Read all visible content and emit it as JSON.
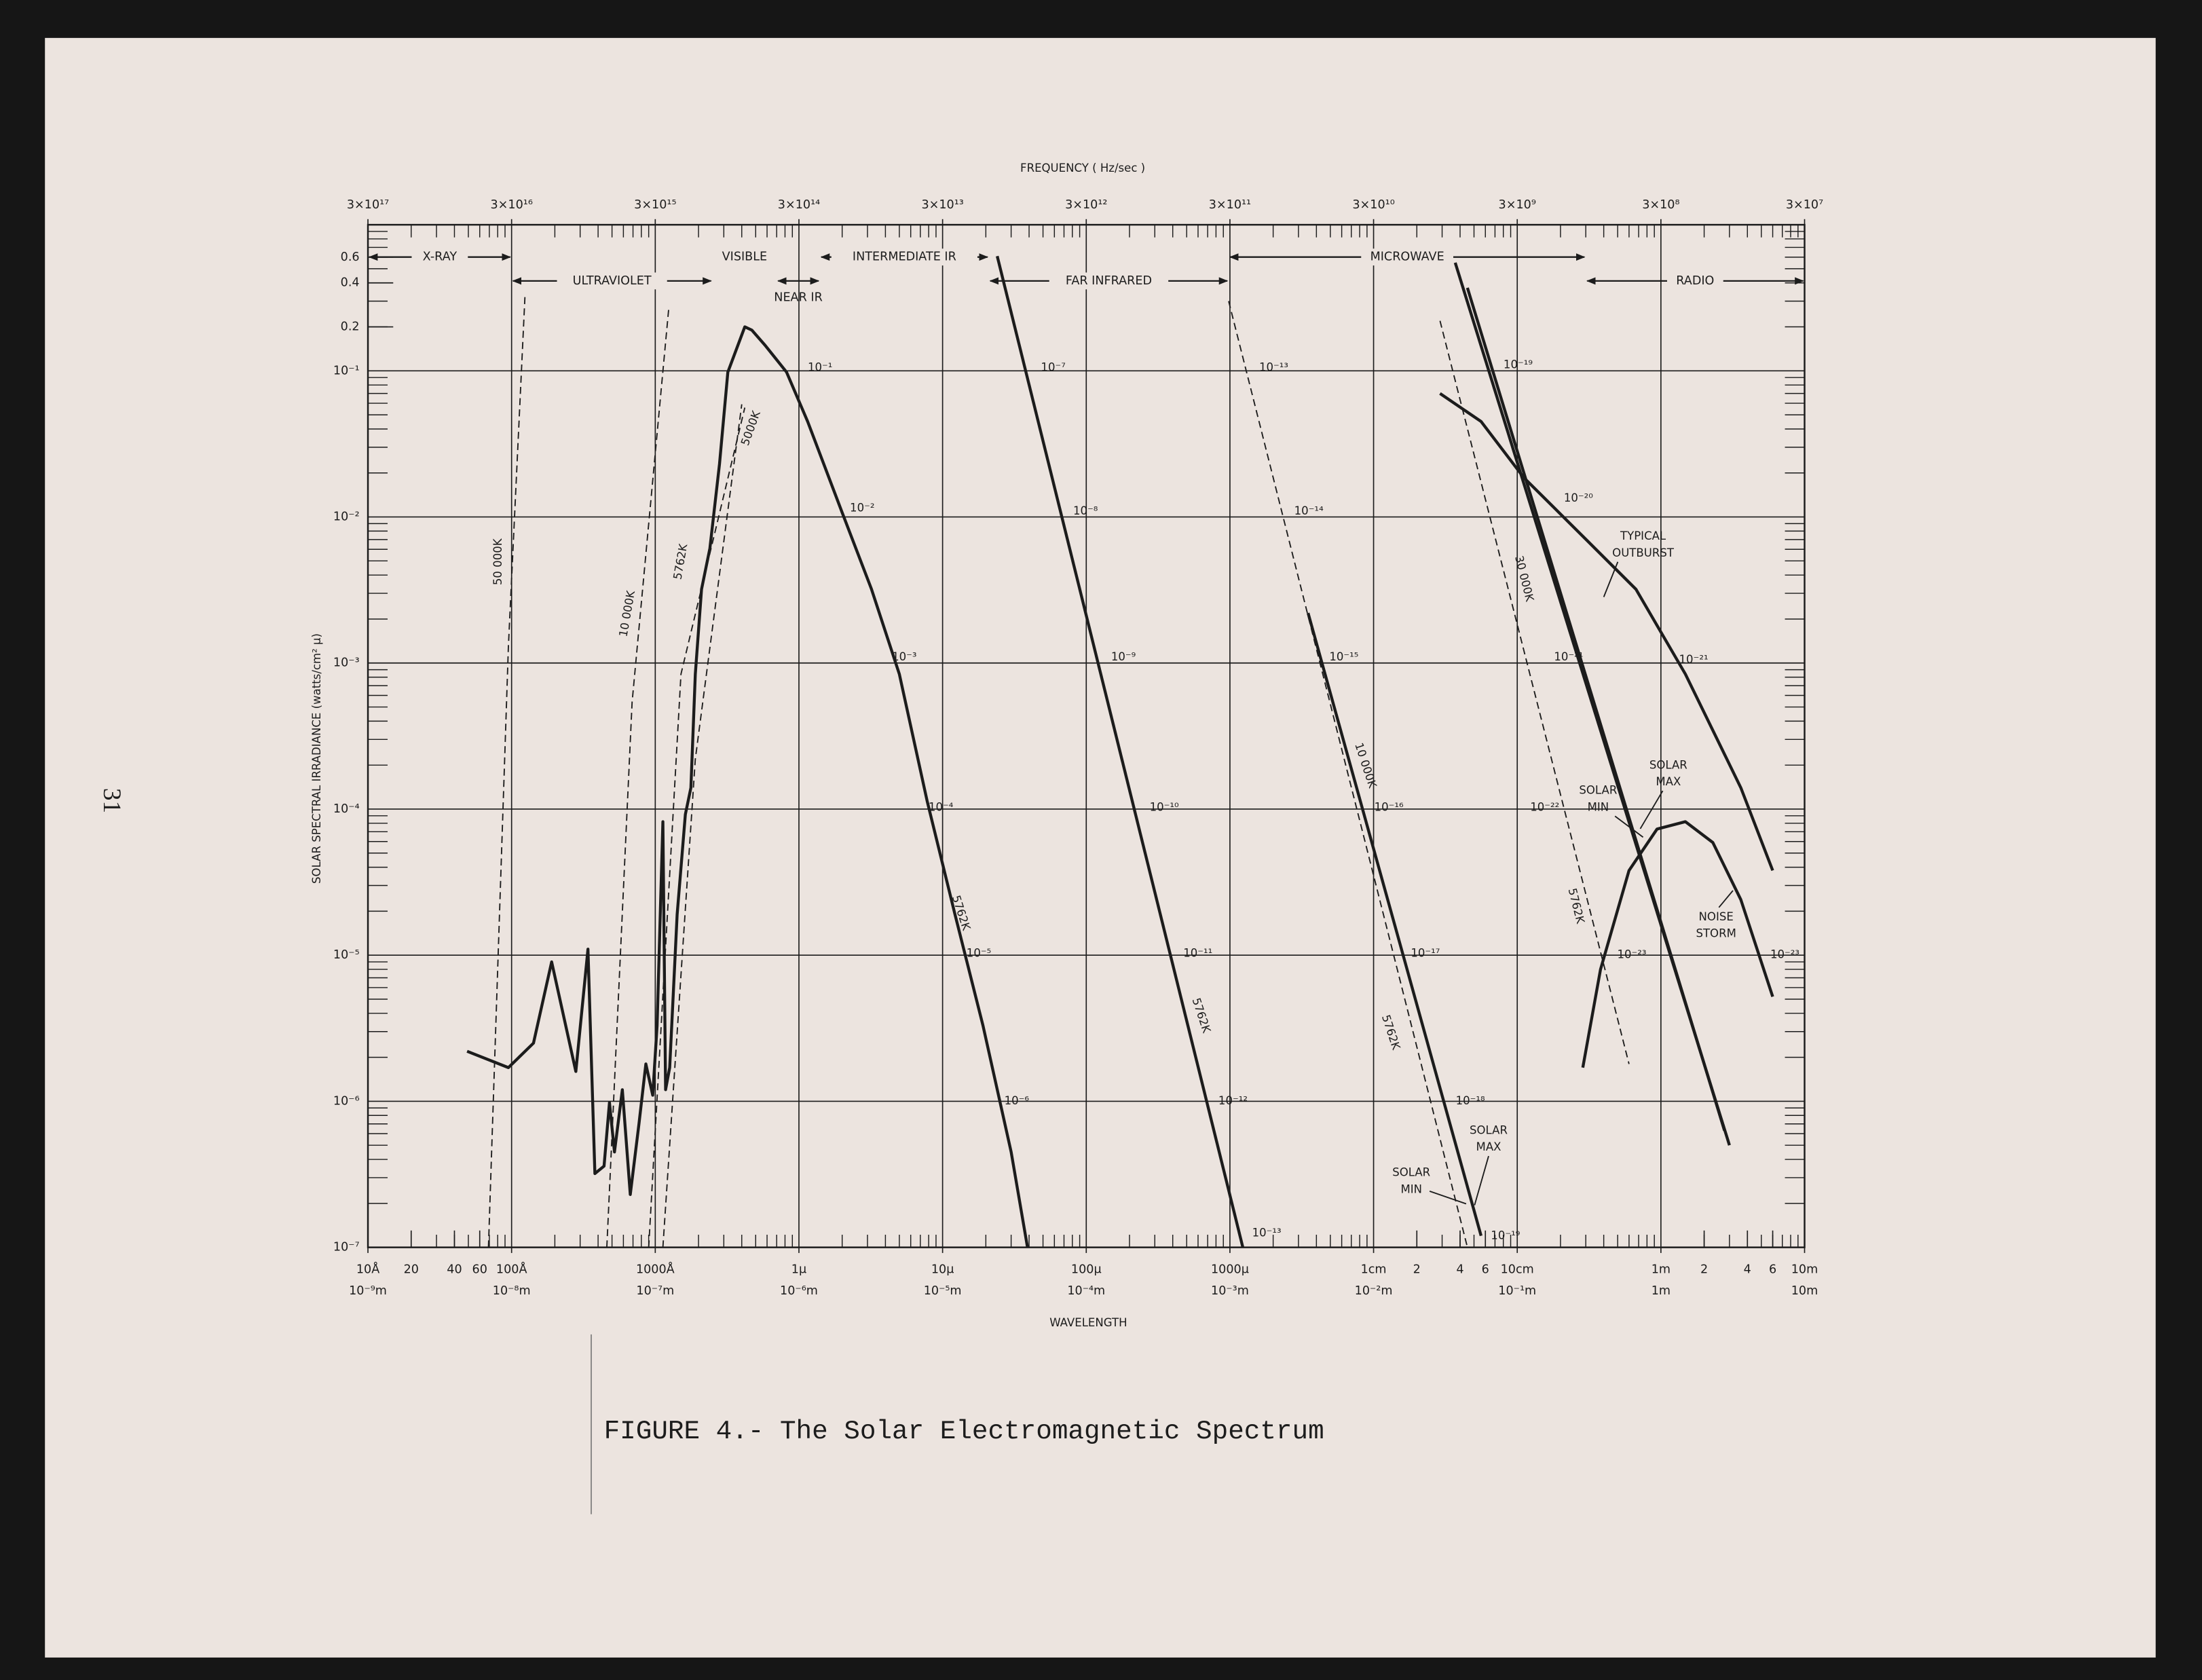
{
  "page_number": "31",
  "chart_data": {
    "type": "line",
    "title": "FIGURE 4.- The Solar Electromagnetic Spectrum",
    "x_label": "WAVELENGTH",
    "x2_label": "FREQUENCY ( Hz/sec )",
    "y_label": "SOLAR SPECTRAL IRRADIANCE (watts/cm² μ)",
    "xscale": "log",
    "yscale": "log",
    "grid": true,
    "xlim": [
      1e-09,
      10
    ],
    "x2lim": [
      3e+17,
      30000000.0
    ],
    "ylim": [
      1e-07,
      1
    ],
    "xticks": [
      {
        "value": 1e-09,
        "label": "10Å"
      },
      {
        "value": 1e-08,
        "label": "100Å"
      },
      {
        "value": 1e-07,
        "label": "1000Å"
      },
      {
        "value": 1e-06,
        "label": "1μ"
      },
      {
        "value": 1e-05,
        "label": "10μ"
      },
      {
        "value": 0.0001,
        "label": "100μ"
      },
      {
        "value": 0.001,
        "label": "1000μ"
      },
      {
        "value": 0.01,
        "label": "1cm"
      },
      {
        "value": 0.1,
        "label": "10cm"
      },
      {
        "value": 1,
        "label": "1m"
      },
      {
        "value": 10,
        "label": "10m"
      }
    ],
    "xticks_m": [
      {
        "value": 1e-09,
        "label": "10⁻⁹m"
      },
      {
        "value": 1e-08,
        "label": "10⁻⁸m"
      },
      {
        "value": 1e-07,
        "label": "10⁻⁷m"
      },
      {
        "value": 1e-06,
        "label": "10⁻⁶m"
      },
      {
        "value": 1e-05,
        "label": "10⁻⁵m"
      },
      {
        "value": 0.0001,
        "label": "10⁻⁴m"
      },
      {
        "value": 0.001,
        "label": "10⁻³m"
      },
      {
        "value": 0.01,
        "label": "10⁻²m"
      },
      {
        "value": 0.1,
        "label": "10⁻¹m"
      },
      {
        "value": 1,
        "label": "1m"
      },
      {
        "value": 10,
        "label": "10m"
      }
    ],
    "xticks_minor": [
      {
        "value": 2e-09,
        "label": "20"
      },
      {
        "value": 4e-09,
        "label": "40"
      },
      {
        "value": 6e-09,
        "label": "60"
      },
      {
        "value": 0.02,
        "label": "2"
      },
      {
        "value": 0.04,
        "label": "4"
      },
      {
        "value": 0.06,
        "label": "6"
      },
      {
        "value": 2,
        "label": "2"
      },
      {
        "value": 4,
        "label": "4"
      },
      {
        "value": 6,
        "label": "6"
      }
    ],
    "x2ticks": [
      {
        "value": 3e+17,
        "label": "3×10¹⁷"
      },
      {
        "value": 3e+16,
        "label": "3×10¹⁶"
      },
      {
        "value": 3000000000000000.0,
        "label": "3×10¹⁵"
      },
      {
        "value": 300000000000000.0,
        "label": "3×10¹⁴"
      },
      {
        "value": 30000000000000.0,
        "label": "3×10¹³"
      },
      {
        "value": 3000000000000.0,
        "label": "3×10¹²"
      },
      {
        "value": 300000000000.0,
        "label": "3×10¹¹"
      },
      {
        "value": 30000000000.0,
        "label": "3×10¹⁰"
      },
      {
        "value": 3000000000.0,
        "label": "3×10⁹"
      },
      {
        "value": 300000000.0,
        "label": "3×10⁸"
      },
      {
        "value": 30000000.0,
        "label": "3×10⁷"
      }
    ],
    "yticks": [
      {
        "value": 1e-07,
        "label": "10⁻⁷"
      },
      {
        "value": 1e-06,
        "label": "10⁻⁶"
      },
      {
        "value": 1e-05,
        "label": "10⁻⁵"
      },
      {
        "value": 0.0001,
        "label": "10⁻⁴"
      },
      {
        "value": 0.001,
        "label": "10⁻³"
      },
      {
        "value": 0.01,
        "label": "10⁻²"
      },
      {
        "value": 0.1,
        "label": "10⁻¹"
      },
      0.2,
      0.4,
      0.6
    ],
    "bands": [
      {
        "label": "X-RAY",
        "from": 1e-09,
        "to": 1e-08
      },
      {
        "label": "ULTRAVIOLET",
        "from": 1e-08,
        "to": 2.5e-07
      },
      {
        "label": "VISIBLE",
        "from": 2.5e-07,
        "to": 7e-07
      },
      {
        "label": "NEAR IR",
        "from": 7e-07,
        "to": 1.4e-06
      },
      {
        "label": "INTERMEDIATE IR",
        "from": 1.4e-06,
        "to": 2.1e-05
      },
      {
        "label": "FAR INFRARED",
        "from": 2.1e-05,
        "to": 0.00098
      },
      {
        "label": "MICROWAVE",
        "from": 0.00098,
        "to": 0.3
      },
      {
        "label": "RADIO",
        "from": 0.3,
        "to": 10
      }
    ],
    "series": [
      {
        "color": "#1c1c1c",
        "dashed": false,
        "x": [
          4.9e-09,
          9.5e-09,
          1.42e-08,
          1.9e-08,
          2.8e-08,
          3.4e-08,
          3.8e-08,
          4.4e-08,
          4.8e-08,
          5.2e-08,
          5.9e-08,
          6.7e-08,
          7.7e-08,
          8.6e-08,
          9.6e-08,
          1.03e-07,
          1.13e-07,
          1.18e-07,
          1.26e-07,
          1.42e-07,
          1.62e-07,
          1.77e-07,
          1.9e-07,
          2.1e-07,
          2.4e-07,
          2.8e-07,
          3.2e-07,
          4.2e-07,
          4.7e-07,
          5.8e-07,
          8.2e-07,
          1.15e-06,
          2e-06,
          3.2e-06,
          5e-06,
          7.8e-06,
          1.22e-05,
          1.91e-05,
          3e-05,
          3.9e-05
        ],
        "values": [
          2.2e-06,
          1.7e-06,
          2.5e-06,
          9e-06,
          1.6e-06,
          1.1e-05,
          3.2e-07,
          3.6e-07,
          9.8e-07,
          4.5e-07,
          1.2e-06,
          2.3e-07,
          7e-07,
          1.8e-06,
          1.1e-06,
          3.3e-06,
          8.2e-05,
          1.2e-06,
          1.7e-06,
          1.9e-05,
          9.2e-05,
          0.00014,
          0.00084,
          0.0032,
          0.0061,
          0.023,
          0.098,
          0.2,
          0.19,
          0.15,
          0.098,
          0.045,
          0.0107,
          0.0032,
          0.00084,
          0.000114,
          1.9e-05,
          3.3e-06,
          4.5e-07,
          1e-07
        ]
      },
      {
        "color": "#1c1c1c",
        "dashed": true,
        "x": [
          6.9e-09,
          9.5e-09,
          1.24e-08
        ],
        "values": [
          1e-07,
          0.0013,
          0.33
        ]
      },
      {
        "color": "#1c1c1c",
        "dashed": true,
        "x": [
          4.6e-08,
          6.9e-08,
          1.24e-07
        ],
        "values": [
          1e-07,
          0.00054,
          0.265
        ]
      },
      {
        "color": "#1c1c1c",
        "dashed": true,
        "x": [
          9e-08,
          1.51e-07,
          4.2e-07
        ],
        "values": [
          1e-07,
          0.00084,
          0.056
        ]
      },
      {
        "color": "#1c1c1c",
        "dashed": true,
        "x": [
          1.13e-07,
          1.9e-07,
          4e-07
        ],
        "values": [
          1e-07,
          0.00022,
          0.059
        ]
      },
      {
        "color": "#1c1c1c",
        "dashed": false,
        "x": [
          2.4e-05,
          0.00123
        ],
        "values": [
          0.61,
          1e-07
        ]
      },
      {
        "color": "#1c1c1c",
        "dashed": true,
        "x": [
          0.00098,
          0.045
        ],
        "values": [
          0.3,
          1e-07
        ]
      },
      {
        "color": "#1c1c1c",
        "dashed": false,
        "x": [
          0.0035,
          0.056
        ],
        "values": [
          0.0022,
          1.2e-07
        ]
      },
      {
        "color": "#1c1c1c",
        "dashed": true,
        "x": [
          0.029,
          0.6
        ],
        "values": [
          0.22,
          1.8e-06
        ]
      },
      {
        "color": "#1c1c1c",
        "dashed": false,
        "x": [
          0.045,
          2.77
        ],
        "values": [
          0.37,
          6.3e-07
        ]
      },
      {
        "color": "#1c1c1c",
        "dashed": false,
        "x": [
          0.037,
          3.0
        ],
        "values": [
          0.55,
          5e-07
        ]
      },
      {
        "color": "#1c1c1c",
        "dashed": false,
        "x": [
          0.029,
          0.056,
          0.111,
          0.306,
          0.67,
          1.48,
          3.6,
          6.0
        ],
        "values": [
          0.07,
          0.045,
          0.0186,
          0.0069,
          0.0032,
          0.00084,
          0.00014,
          3.8e-05
        ]
      },
      {
        "color": "#1c1c1c",
        "dashed": false,
        "x": [
          0.286,
          0.38,
          0.6,
          0.94,
          1.48,
          2.3,
          3.6,
          6.0
        ],
        "values": [
          1.7e-06,
          8e-06,
          3.8e-05,
          7.3e-05,
          8.2e-05,
          5.9e-05,
          2.4e-05,
          5.2e-06
        ]
      }
    ],
    "curve_labels": [
      "50 000K",
      "10 000K",
      "5762K",
      "5000K",
      "5762K",
      "5762K",
      "10 000K",
      "5762K",
      "30 000K",
      "5762K",
      "TYPICAL",
      "OUTBURST",
      "SOLAR",
      "MAX",
      "SOLAR",
      "MIN",
      "NOISE",
      "STORM",
      "SOLAR",
      "MAX",
      "SOLAR",
      "MIN"
    ],
    "power_labels": [
      "10⁻¹",
      "10⁻²",
      "10⁻³",
      "10⁻⁴",
      "10⁻⁵",
      "10⁻⁶",
      "10⁻⁷",
      "10⁻⁸",
      "10⁻⁹",
      "10⁻¹⁰",
      "10⁻¹¹",
      "10⁻¹²",
      "10⁻¹³",
      "10⁻¹³",
      "10⁻¹⁴",
      "10⁻¹⁵",
      "10⁻¹⁶",
      "10⁻¹⁷",
      "10⁻¹⁸",
      "10⁻¹⁹",
      "10⁻¹⁹",
      "10⁻²⁰",
      "10⁻²¹",
      "10⁻²²",
      "10⁻²³",
      "10⁻²¹",
      "10⁻²³"
    ]
  }
}
